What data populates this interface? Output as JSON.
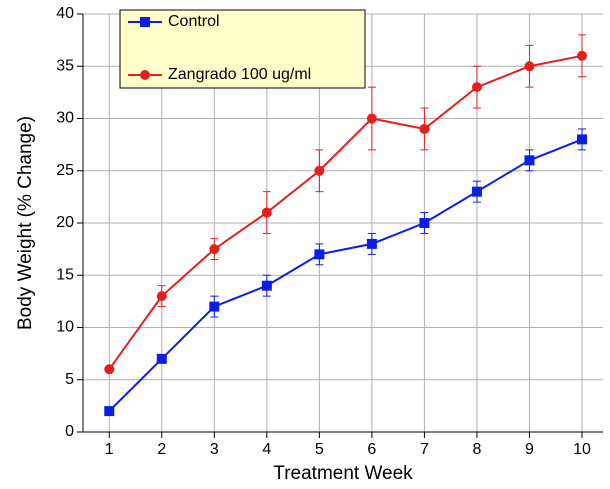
{
  "chart_data": {
    "type": "line",
    "x_label": "Treatment Week",
    "y_label": "Body Weight  (% Change)",
    "x": [
      1,
      2,
      3,
      4,
      5,
      6,
      7,
      8,
      9,
      10
    ],
    "series": [
      {
        "name": "Control",
        "color": "#0a1ee6",
        "marker": "square",
        "values": [
          2,
          7,
          12,
          14,
          17,
          18,
          20,
          23,
          26,
          28
        ],
        "errors": [
          0,
          0.3,
          1,
          1,
          1,
          1,
          1,
          1,
          1,
          1
        ]
      },
      {
        "name": "Zangrado 100 ug/ml",
        "color": "#e61e1e",
        "marker": "circle",
        "values": [
          6,
          13,
          17.5,
          21,
          25,
          30,
          29,
          33,
          35,
          36
        ],
        "errors": [
          0,
          1,
          1,
          2,
          2,
          3,
          2,
          2,
          2,
          2
        ]
      }
    ],
    "xlim": [
      0.5,
      10.4
    ],
    "xticks": [
      1,
      2,
      3,
      4,
      5,
      6,
      7,
      8,
      9,
      10
    ],
    "ylim": [
      0,
      40
    ],
    "yticks": [
      0,
      5,
      10,
      15,
      20,
      25,
      30,
      35,
      40
    ],
    "grid": true,
    "legend": "upper left",
    "legend_background": "#ffffcc"
  }
}
